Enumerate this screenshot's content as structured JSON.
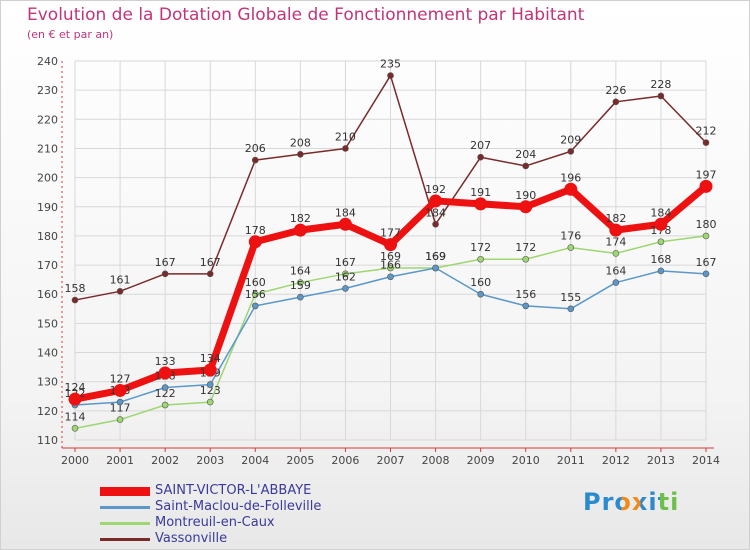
{
  "title": "Evolution de la Dotation Globale de Fonctionnement par Habitant",
  "subtitle": "(en € et par an)",
  "logo": "Proxiti",
  "chart_data": {
    "type": "line",
    "title": "Evolution de la Dotation Globale de Fonctionnement par Habitant",
    "ylabel": "(en € et par an)",
    "xlabel": "",
    "x": [
      "2000",
      "2001",
      "2002",
      "2003",
      "2004",
      "2005",
      "2006",
      "2007",
      "2008",
      "2009",
      "2010",
      "2011",
      "2012",
      "2013",
      "2014"
    ],
    "ylim": [
      110,
      240
    ],
    "yticks": [
      110,
      120,
      130,
      140,
      150,
      160,
      170,
      180,
      190,
      200,
      210,
      220,
      230,
      240
    ],
    "grid": true,
    "legend_position": "bottom-left",
    "series": [
      {
        "name": "Vassonville",
        "color": "#7a2a2a",
        "width": 1.5,
        "values": [
          158,
          161,
          167,
          167,
          206,
          208,
          210,
          235,
          184,
          207,
          204,
          209,
          226,
          228,
          212
        ]
      },
      {
        "name": "Montreuil-en-Caux",
        "color": "#9ed672",
        "width": 1.5,
        "values": [
          114,
          117,
          122,
          123,
          160,
          164,
          167,
          169,
          169,
          172,
          172,
          176,
          174,
          178,
          180
        ]
      },
      {
        "name": "Saint-Maclou-de-Folleville",
        "color": "#5b98c9",
        "width": 1.5,
        "values": [
          122,
          123,
          128,
          129,
          156,
          159,
          162,
          166,
          169,
          160,
          156,
          155,
          164,
          168,
          167
        ]
      },
      {
        "name": "SAINT-VICTOR-L'ABBAYE",
        "color": "#ee1111",
        "width": 7,
        "values": [
          124,
          127,
          133,
          134,
          178,
          182,
          184,
          177,
          192,
          191,
          190,
          196,
          182,
          184,
          197
        ]
      }
    ]
  },
  "legend": [
    {
      "label": "SAINT-VICTOR-L'ABBAYE",
      "color": "#ee1111"
    },
    {
      "label": "Saint-Maclou-de-Folleville",
      "color": "#5b98c9"
    },
    {
      "label": "Montreuil-en-Caux",
      "color": "#9ed672"
    },
    {
      "label": "Vassonville",
      "color": "#7a2a2a"
    }
  ]
}
